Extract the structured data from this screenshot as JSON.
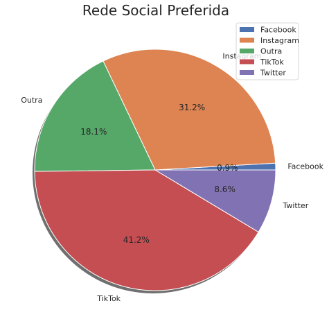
{
  "chart_data": {
    "type": "pie",
    "title": "Rede Social Preferida",
    "slices": [
      {
        "label": "Facebook",
        "value": 0.9,
        "pct_label": "0.9%",
        "color": "#4c72b0"
      },
      {
        "label": "Instagram",
        "value": 31.2,
        "pct_label": "31.2%",
        "color": "#dd8452"
      },
      {
        "label": "Outra",
        "value": 18.1,
        "pct_label": "18.1%",
        "color": "#55a868"
      },
      {
        "label": "TikTok",
        "value": 41.2,
        "pct_label": "41.2%",
        "color": "#c44e52"
      },
      {
        "label": "Twitter",
        "value": 8.6,
        "pct_label": "8.6%",
        "color": "#8172b3"
      }
    ],
    "shadow": true,
    "legend_position": "top-right"
  }
}
